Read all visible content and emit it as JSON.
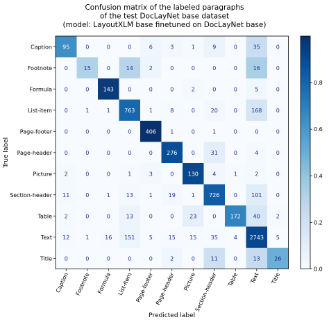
{
  "chart_data": {
    "type": "heatmap",
    "title_lines": [
      "Confusion matrix of the labeled paragraphs",
      "of the test DocLayNet base dataset",
      "(model: LayoutXLM base finetuned on DocLayNet base)"
    ],
    "xlabel": "Predicted label",
    "ylabel": "True label",
    "labels": [
      "Caption",
      "Footnote",
      "Formula",
      "List-item",
      "Page-footer",
      "Page-header",
      "Picture",
      "Section-header",
      "Table",
      "Text",
      "Title"
    ],
    "matrix": [
      [
        95,
        0,
        0,
        0,
        6,
        3,
        1,
        9,
        0,
        35,
        0
      ],
      [
        0,
        15,
        0,
        14,
        2,
        0,
        0,
        0,
        0,
        16,
        0
      ],
      [
        0,
        0,
        143,
        0,
        0,
        0,
        2,
        0,
        0,
        5,
        0
      ],
      [
        0,
        1,
        1,
        763,
        1,
        8,
        0,
        20,
        0,
        168,
        0
      ],
      [
        0,
        0,
        0,
        0,
        406,
        1,
        0,
        1,
        0,
        0,
        0
      ],
      [
        0,
        0,
        0,
        0,
        0,
        276,
        0,
        31,
        0,
        4,
        0
      ],
      [
        2,
        0,
        0,
        1,
        3,
        0,
        130,
        4,
        1,
        2,
        0
      ],
      [
        11,
        0,
        1,
        13,
        1,
        19,
        1,
        726,
        0,
        101,
        0
      ],
      [
        2,
        0,
        0,
        13,
        0,
        0,
        23,
        0,
        172,
        40,
        2
      ],
      [
        12,
        1,
        16,
        151,
        5,
        15,
        15,
        35,
        4,
        2743,
        5
      ],
      [
        0,
        0,
        0,
        0,
        0,
        2,
        0,
        11,
        0,
        13,
        26
      ]
    ],
    "colormap": "Blues",
    "color_scale": "row-normalized",
    "colorbar": {
      "range": [
        0,
        1
      ],
      "ticks": [
        "0.0",
        "0.2",
        "0.4",
        "0.6",
        "0.8"
      ]
    },
    "text_color_dark": "#ffffff",
    "text_color_light": "#1f2f9a"
  }
}
